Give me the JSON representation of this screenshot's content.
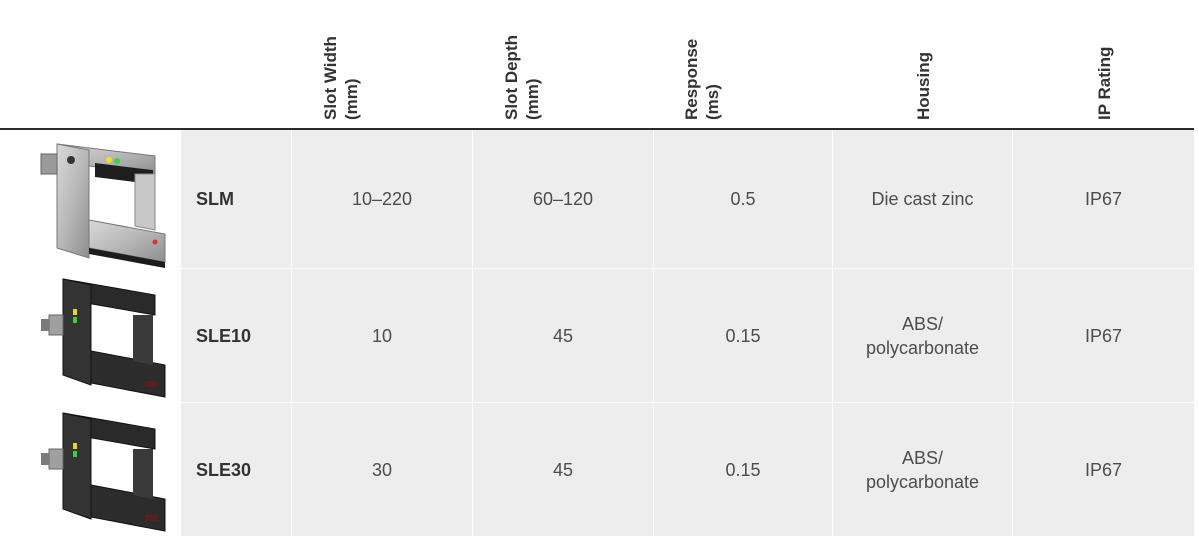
{
  "table": {
    "headers": {
      "slot_width": [
        "Slot Width",
        "(mm)"
      ],
      "slot_depth": [
        "Slot Depth",
        "(mm)"
      ],
      "response": [
        "Response",
        "(ms)"
      ],
      "housing": [
        "Housing"
      ],
      "ip_rating": [
        "IP Rating"
      ]
    },
    "rows": [
      {
        "model": "SLM",
        "slot_width": "10–220",
        "slot_depth": "60–120",
        "response": "0.5",
        "housing": "Die cast zinc",
        "ip_rating": "IP67",
        "image": "metal-slot-sensor"
      },
      {
        "model": "SLE10",
        "slot_width": "10",
        "slot_depth": "45",
        "response": "0.15",
        "housing": "ABS/ polycarbonate",
        "ip_rating": "IP67",
        "image": "black-slot-sensor"
      },
      {
        "model": "SLE30",
        "slot_width": "30",
        "slot_depth": "45",
        "response": "0.15",
        "housing": "ABS/ polycarbonate",
        "ip_rating": "IP67",
        "image": "black-slot-sensor"
      }
    ]
  },
  "colors": {
    "cell_bg": "#ededed",
    "rule": "#2b2b2b",
    "text": "#4d4d4d",
    "header_text": "#333333"
  }
}
